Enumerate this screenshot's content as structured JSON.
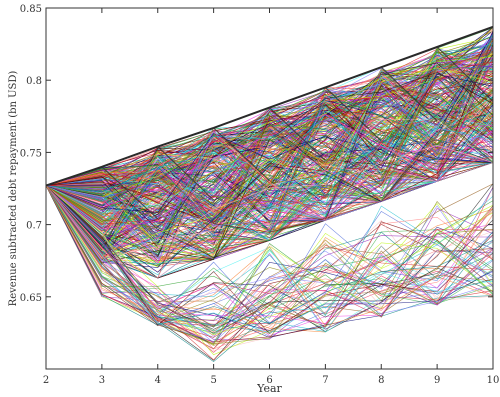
{
  "chart_data": {
    "type": "line",
    "title": "",
    "xlabel": "Year",
    "ylabel": "Revenue subtracted debt repayment (bn USD)",
    "xlim": [
      2,
      10
    ],
    "ylim": [
      0.6,
      0.85
    ],
    "x_ticks": [
      2,
      3,
      4,
      5,
      6,
      7,
      8,
      9,
      10
    ],
    "y_ticks": [
      0.65,
      0.7,
      0.75,
      0.8,
      0.85
    ],
    "y_tick_labels": [
      "0.65",
      "0.7",
      "0.75",
      "0.8",
      "0.85"
    ],
    "grid": false,
    "legend": "none",
    "series_description": "many overlapping simulated paths",
    "envelope": {
      "x": [
        2,
        3,
        4,
        5,
        6,
        7,
        8,
        9,
        10
      ],
      "upper": [
        0.727,
        0.74,
        0.754,
        0.767,
        0.781,
        0.795,
        0.809,
        0.823,
        0.837
      ],
      "fan_low": [
        0.727,
        0.65,
        0.663,
        0.676,
        0.689,
        0.703,
        0.716,
        0.73,
        0.743
      ],
      "tail_low": [
        0.727,
        0.66,
        0.63,
        0.605,
        0.62,
        0.625,
        0.635,
        0.64,
        0.65
      ]
    },
    "colors": [
      "#e6194b",
      "#3cb44b",
      "#4363d8",
      "#f58231",
      "#911eb4",
      "#46f0f0",
      "#f032e6",
      "#bcf60c",
      "#008080",
      "#9a6324",
      "#800000",
      "#000075",
      "#808000",
      "#fabebe",
      "#1a1a1a",
      "#7f7fff",
      "#ff7f7f",
      "#2ca02c",
      "#d62728",
      "#17becf"
    ]
  }
}
